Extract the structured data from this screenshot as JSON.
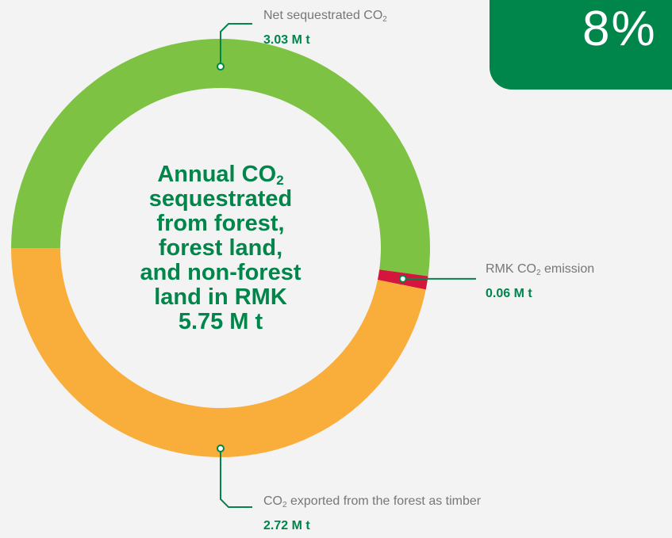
{
  "badge": {
    "value": "8%"
  },
  "center": {
    "line1_prefix": "Annual CO",
    "line1_sub": "2",
    "line2": "sequestrated",
    "line3": "from forest,",
    "line4": "forest land,",
    "line5": "and non-forest",
    "line6": "land in RMK",
    "total": "5.75 M t"
  },
  "labels": {
    "net": {
      "prefix": "Net sequestrated CO",
      "sub": "2",
      "suffix": "",
      "value": "3.03 M t"
    },
    "emission": {
      "prefix": "RMK CO",
      "sub": "2",
      "suffix": " emission",
      "value": "0.06 M t"
    },
    "exported": {
      "prefix": "CO",
      "sub": "2",
      "suffix": " exported from the forest as timber",
      "value": "2.72 M t"
    }
  },
  "colors": {
    "net": "#7dc242",
    "emission": "#d4163e",
    "exported": "#f9ae3b",
    "accent": "#00854a"
  },
  "chart_data": {
    "type": "pie",
    "title": "Annual CO2 sequestrated from forest, forest land, and non-forest land in RMK",
    "total": 5.75,
    "unit": "M t",
    "slices": [
      {
        "name": "Net sequestrated CO2",
        "value": 3.03,
        "color": "#7dc242"
      },
      {
        "name": "RMK CO2 emission",
        "value": 0.06,
        "color": "#d4163e"
      },
      {
        "name": "CO2 exported from the forest as timber",
        "value": 2.72,
        "color": "#f9ae3b"
      }
    ]
  }
}
